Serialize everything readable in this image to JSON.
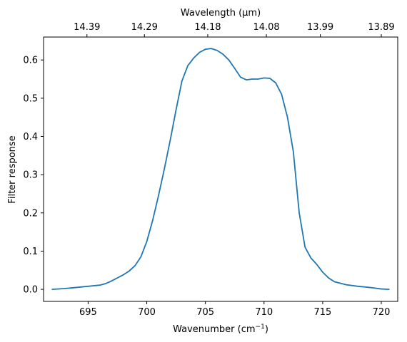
{
  "chart_data": {
    "type": "line",
    "xlabel": "Wavenumber (cm",
    "xlabel_sup": "−1",
    "xlabel_tail": ")",
    "ylabel": "Filter response",
    "top_xlabel": "Wavelength (μm)",
    "xlim": [
      691.2,
      721.4
    ],
    "ylim": [
      -0.0315,
      0.66
    ],
    "x_ticks": [
      695,
      700,
      705,
      710,
      715,
      720
    ],
    "x_tick_labels": [
      "695",
      "700",
      "705",
      "710",
      "715",
      "720"
    ],
    "y_ticks": [
      0.0,
      0.1,
      0.2,
      0.3,
      0.4,
      0.5,
      0.6
    ],
    "y_tick_labels": [
      "0.0",
      "0.1",
      "0.2",
      "0.3",
      "0.4",
      "0.5",
      "0.6"
    ],
    "top_ticks": [
      {
        "wavenumber": 694.9,
        "label": "14.39"
      },
      {
        "wavenumber": 699.8,
        "label": "14.29"
      },
      {
        "wavenumber": 705.2,
        "label": "14.18"
      },
      {
        "wavenumber": 710.2,
        "label": "14.08"
      },
      {
        "wavenumber": 714.8,
        "label": "13.99"
      },
      {
        "wavenumber": 720.0,
        "label": "13.89"
      }
    ],
    "grid": false,
    "legend": "none",
    "series": [
      {
        "color": "#1f77b4",
        "x": [
          691.9,
          693.0,
          694.0,
          695.0,
          696.0,
          696.5,
          697.0,
          697.5,
          698.0,
          698.5,
          699.0,
          699.5,
          700.0,
          700.5,
          701.0,
          701.5,
          702.0,
          702.5,
          703.0,
          703.5,
          704.0,
          704.5,
          705.0,
          705.5,
          706.0,
          706.5,
          707.0,
          707.5,
          708.0,
          708.5,
          709.0,
          709.5,
          710.0,
          710.5,
          711.0,
          711.5,
          712.0,
          712.5,
          713.0,
          713.5,
          714.0,
          714.5,
          715.0,
          715.5,
          716.0,
          717.0,
          718.0,
          719.0,
          720.0,
          720.7
        ],
        "y": [
          0.0,
          0.002,
          0.005,
          0.008,
          0.011,
          0.015,
          0.022,
          0.03,
          0.038,
          0.048,
          0.062,
          0.085,
          0.125,
          0.18,
          0.245,
          0.315,
          0.39,
          0.47,
          0.545,
          0.585,
          0.605,
          0.62,
          0.628,
          0.63,
          0.625,
          0.615,
          0.6,
          0.578,
          0.555,
          0.548,
          0.55,
          0.55,
          0.553,
          0.552,
          0.54,
          0.51,
          0.45,
          0.36,
          0.2,
          0.11,
          0.082,
          0.065,
          0.045,
          0.03,
          0.02,
          0.012,
          0.008,
          0.005,
          0.001,
          0.0
        ]
      }
    ]
  }
}
